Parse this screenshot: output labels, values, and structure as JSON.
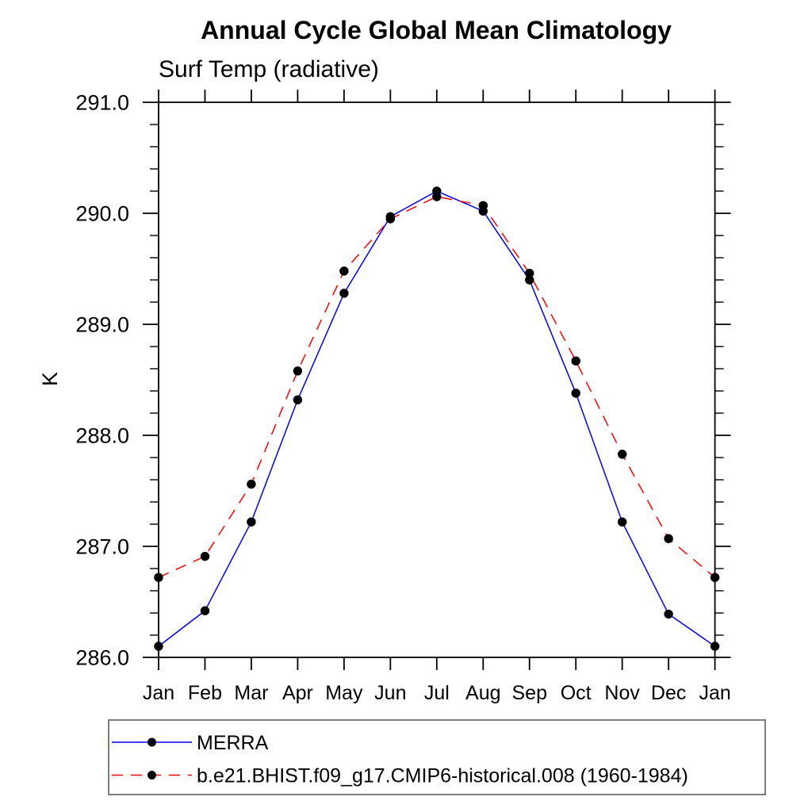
{
  "chart_data": {
    "type": "line",
    "title": "Annual Cycle Global Mean Climatology",
    "subtitle": "Surf Temp (radiative)",
    "ylabel": "K",
    "xlabel": "",
    "categories": [
      "Jan",
      "Feb",
      "Mar",
      "Apr",
      "May",
      "Jun",
      "Jul",
      "Aug",
      "Sep",
      "Oct",
      "Nov",
      "Dec",
      "Jan"
    ],
    "ylim": [
      286.0,
      291.0
    ],
    "y_ticks": [
      286.0,
      287.0,
      288.0,
      289.0,
      290.0,
      291.0
    ],
    "y_tick_labels": [
      "286.0",
      "287.0",
      "288.0",
      "289.0",
      "290.0",
      "291.0"
    ],
    "y_minor_step": 0.2,
    "grid": false,
    "axis_color": "#000000",
    "marker_color": "#000000",
    "legend_position": "bottom-left",
    "legend_border_color": "#7d7d7d",
    "series": [
      {
        "name": "MERRA",
        "color": "#0000ff",
        "line_style": "solid",
        "marker": "filled-circle",
        "values": [
          286.1,
          286.42,
          287.22,
          288.32,
          289.28,
          289.97,
          290.2,
          290.02,
          289.4,
          288.38,
          287.22,
          286.39,
          286.1
        ]
      },
      {
        "name": "b.e21.BHIST.f09_g17.CMIP6-historical.008 (1960-1984)",
        "color": "#ff0000",
        "line_style": "dashed",
        "marker": "filled-circle",
        "values": [
          286.72,
          286.91,
          287.56,
          288.58,
          289.48,
          289.95,
          290.15,
          290.07,
          289.46,
          288.67,
          287.83,
          287.07,
          286.72
        ]
      }
    ]
  }
}
